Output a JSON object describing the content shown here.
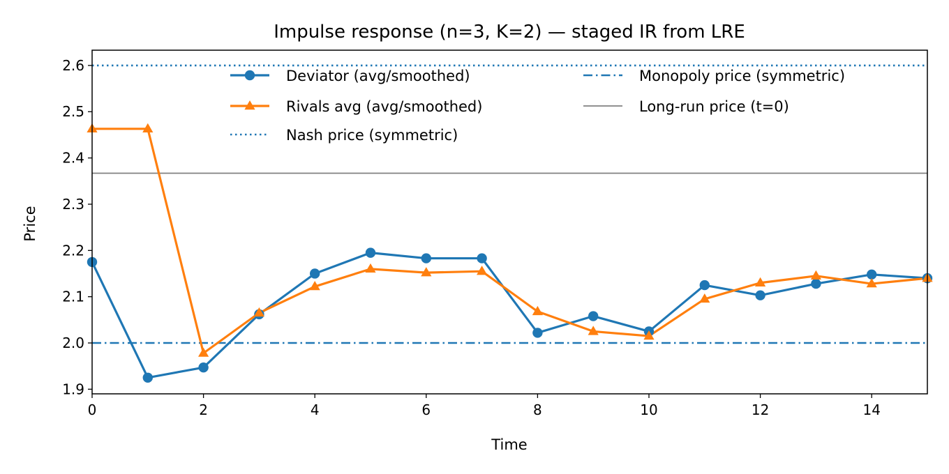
{
  "chart_data": {
    "type": "line",
    "title": "Impulse response (n=3, K=2) — staged IR from LRE",
    "xlabel": "Time",
    "ylabel": "Price",
    "xlim": [
      0,
      15
    ],
    "ylim": [
      1.89,
      2.633
    ],
    "xticks": [
      0,
      2,
      4,
      6,
      8,
      10,
      12,
      14
    ],
    "yticks": [
      1.9,
      2.0,
      2.1,
      2.2,
      2.3,
      2.4,
      2.5,
      2.6
    ],
    "grid": false,
    "legend_placement": "top",
    "x": [
      0,
      1,
      2,
      3,
      4,
      5,
      6,
      7,
      8,
      9,
      10,
      11,
      12,
      13,
      14,
      15
    ],
    "series": [
      {
        "name": "Deviator (avg/smoothed)",
        "color": "#1f77b4",
        "marker": "circle",
        "values": [
          2.175,
          1.925,
          1.947,
          2.062,
          2.15,
          2.195,
          2.183,
          2.183,
          2.022,
          2.058,
          2.025,
          2.125,
          2.103,
          2.128,
          2.148,
          2.14
        ]
      },
      {
        "name": "Rivals avg (avg/smoothed)",
        "color": "#ff7f0e",
        "marker": "triangle",
        "values": [
          2.463,
          2.463,
          1.978,
          2.065,
          2.122,
          2.16,
          2.152,
          2.155,
          2.068,
          2.025,
          2.015,
          2.095,
          2.13,
          2.145,
          2.128,
          2.14
        ]
      }
    ],
    "reference_lines": [
      {
        "name": "Nash price (symmetric)",
        "y": 2.6,
        "color": "#1f77b4",
        "style": "dotted"
      },
      {
        "name": "Monopoly price (symmetric)",
        "y": 2.0,
        "color": "#1f77b4",
        "style": "dashdot"
      },
      {
        "name": "Long-run price (t=0)",
        "y": 2.367,
        "color": "#808080",
        "style": "solid"
      }
    ],
    "legend": [
      {
        "label": "Deviator (avg/smoothed)",
        "kind": "series",
        "index": 0
      },
      {
        "label": "Rivals avg (avg/smoothed)",
        "kind": "series",
        "index": 1
      },
      {
        "label": "Nash price (symmetric)",
        "kind": "ref",
        "index": 0
      },
      {
        "label": "Monopoly price (symmetric)",
        "kind": "ref",
        "index": 1
      },
      {
        "label": "Long-run price (t=0)",
        "kind": "ref",
        "index": 2
      }
    ]
  }
}
